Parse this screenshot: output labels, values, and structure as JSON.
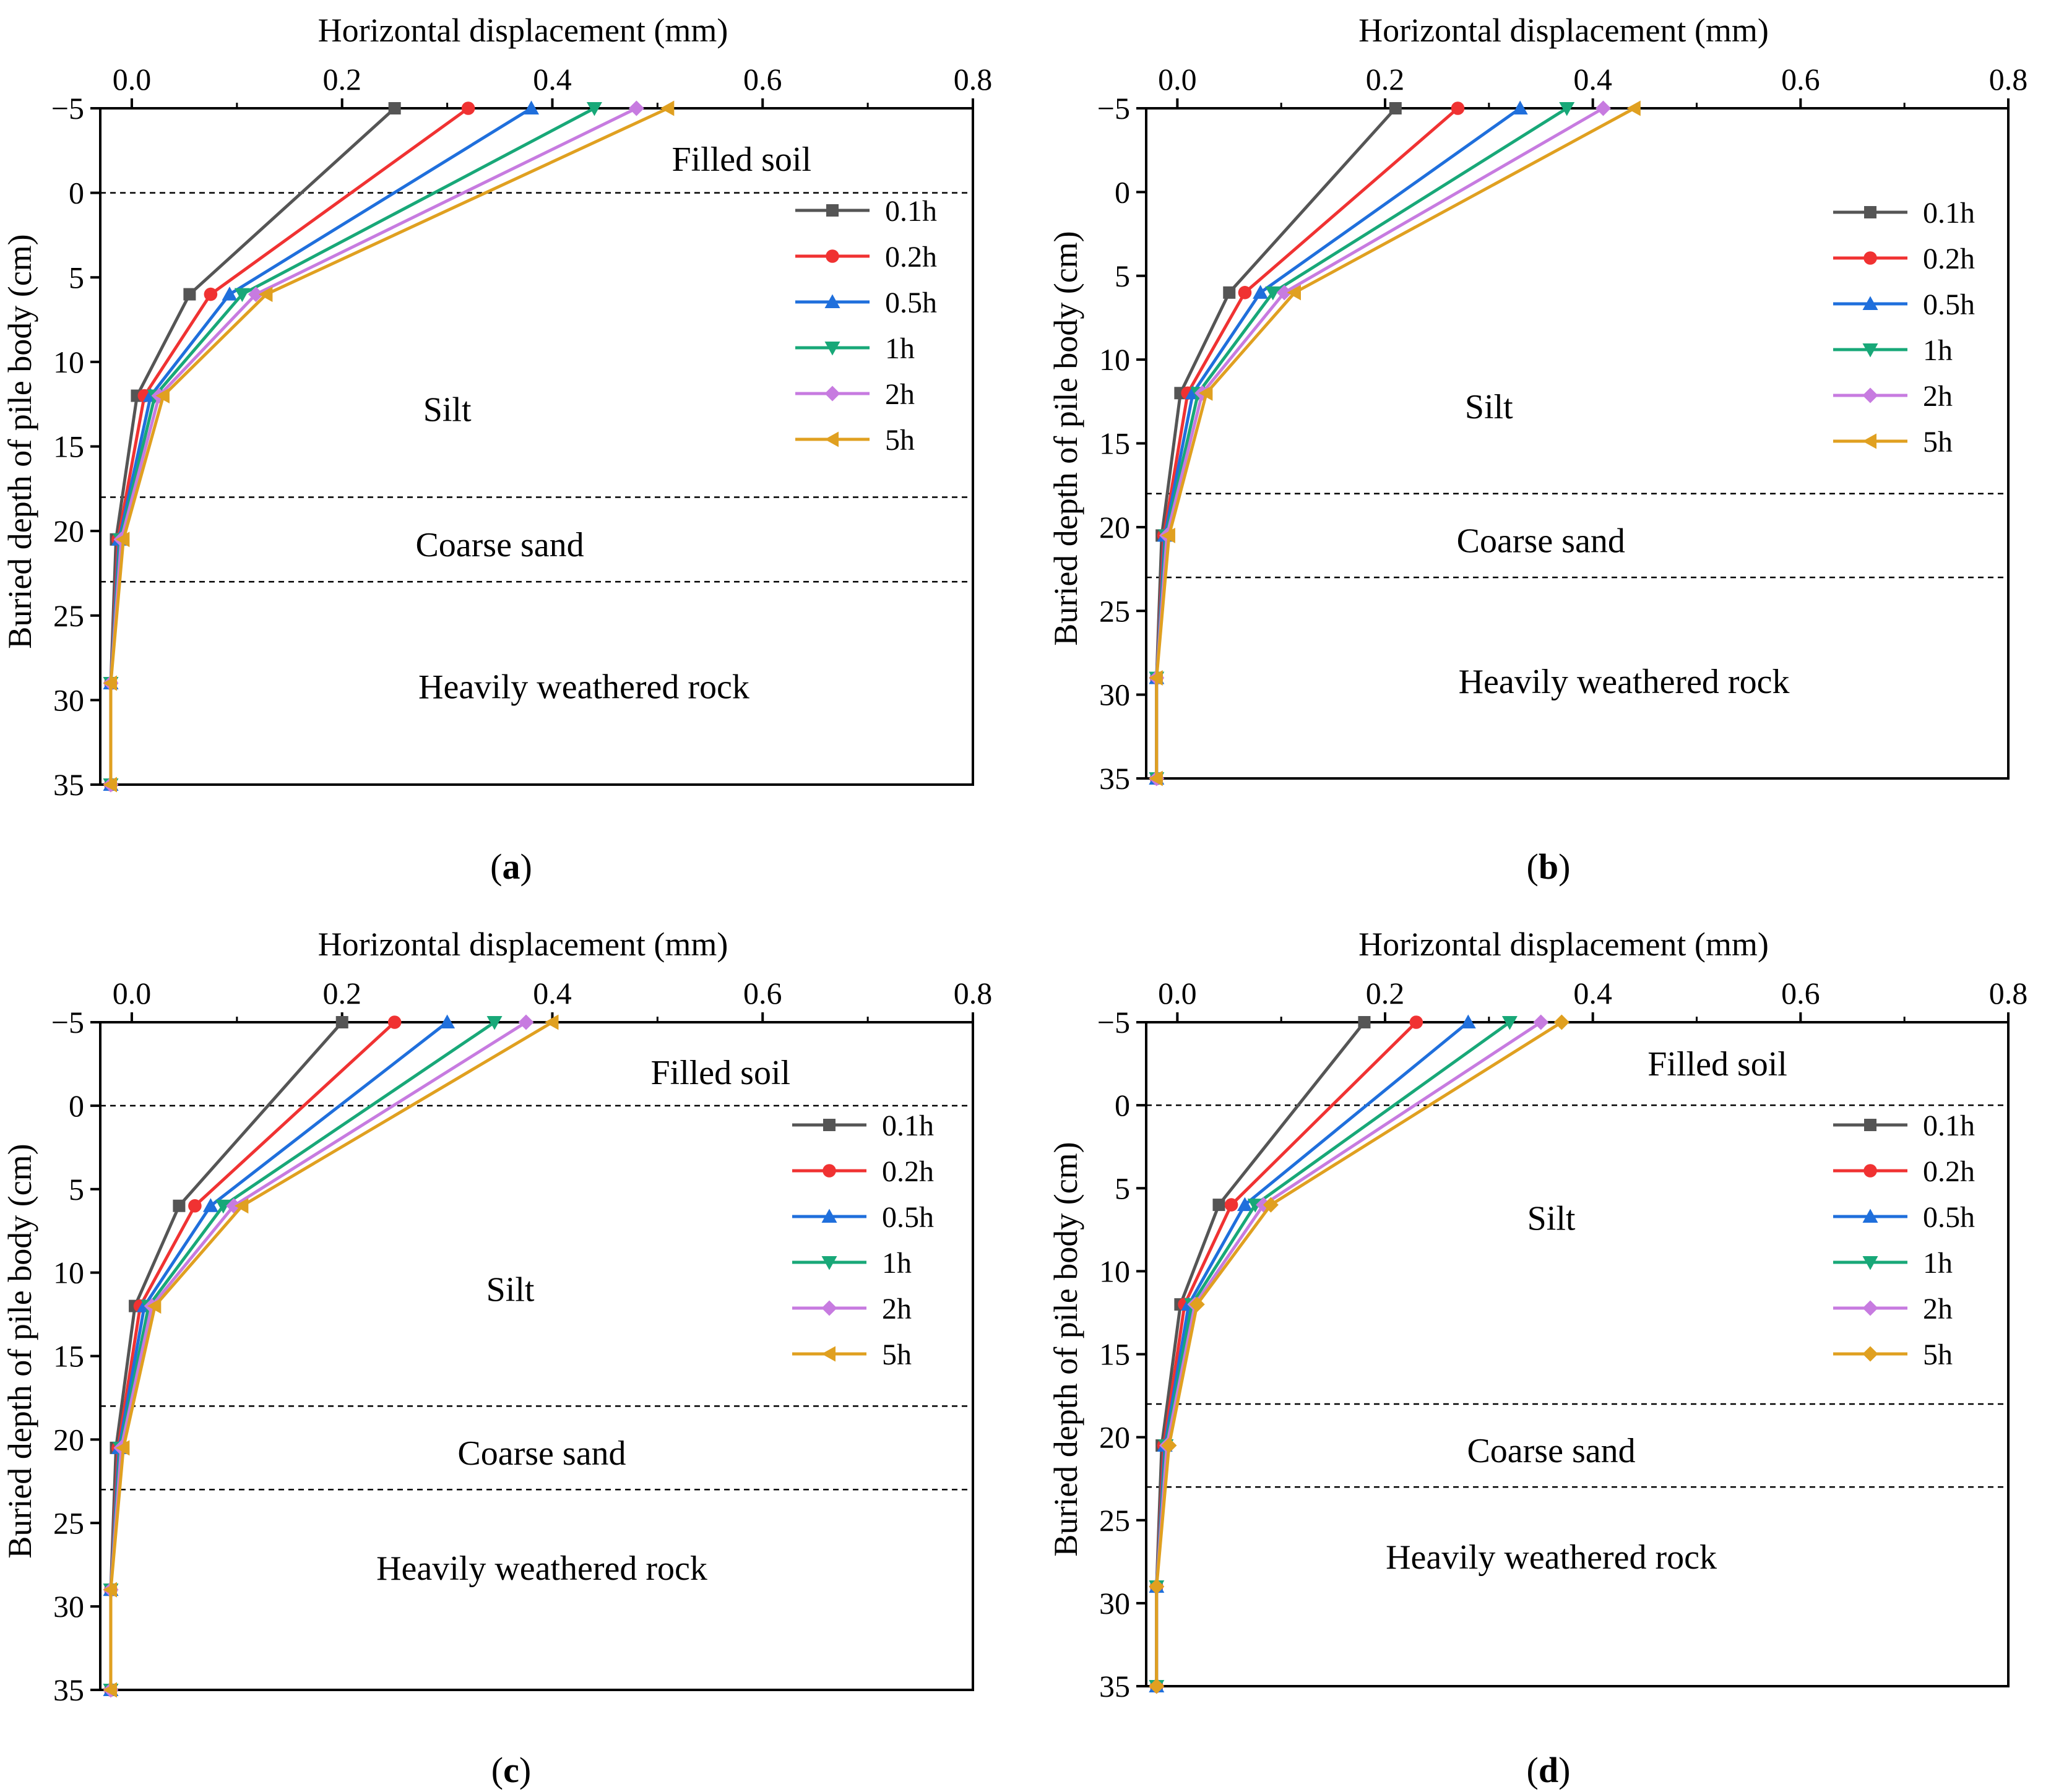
{
  "figure": {
    "panel_labels": [
      "(a)",
      "(b)",
      "(c)",
      "(d)"
    ]
  },
  "styles": {
    "series_colors": [
      "#555555",
      "#f03232",
      "#1f6fdc",
      "#18a878",
      "#c77be0",
      "#e0a020"
    ],
    "series_markers": [
      "square",
      "circle",
      "triangle-up",
      "triangle-down",
      "diamond",
      "triangle-left"
    ],
    "axis_color": "#000000",
    "boundary_color": "#000000"
  },
  "chart_data": [
    {
      "panel": "(a)",
      "type": "line",
      "xlabel": "Horizontal displacement (mm)",
      "ylabel": "Buried depth of pile body (cm)",
      "xlim": [
        -0.03,
        0.8
      ],
      "ylim": [
        -5,
        35
      ],
      "xticks": [
        0.0,
        0.2,
        0.4,
        0.6,
        0.8
      ],
      "xtick_labels": [
        "0.0",
        "0.2",
        "0.4",
        "0.6",
        "0.8"
      ],
      "yticks": [
        -5,
        0,
        5,
        10,
        15,
        20,
        25,
        30,
        35
      ],
      "ytick_labels": [
        "−5",
        "0",
        "5",
        "10",
        "15",
        "20",
        "25",
        "30",
        "35"
      ],
      "y": [
        -5,
        6,
        12,
        20.5,
        29,
        35
      ],
      "series": [
        {
          "name": "0.1h",
          "marker": "square",
          "values": [
            0.25,
            0.055,
            0.005,
            -0.015,
            -0.02,
            -0.02
          ]
        },
        {
          "name": "0.2h",
          "marker": "circle",
          "values": [
            0.32,
            0.075,
            0.012,
            -0.013,
            -0.02,
            -0.02
          ]
        },
        {
          "name": "0.5h",
          "marker": "triangle-up",
          "values": [
            0.38,
            0.093,
            0.018,
            -0.012,
            -0.02,
            -0.02
          ]
        },
        {
          "name": "1h",
          "marker": "triangle-down",
          "values": [
            0.44,
            0.105,
            0.022,
            -0.011,
            -0.02,
            -0.02
          ]
        },
        {
          "name": "2h",
          "marker": "diamond",
          "values": [
            0.48,
            0.118,
            0.026,
            -0.01,
            -0.02,
            -0.02
          ]
        },
        {
          "name": "5h",
          "marker": "triangle-left",
          "values": [
            0.51,
            0.128,
            0.03,
            -0.008,
            -0.02,
            -0.02
          ]
        }
      ],
      "boundaries": [
        0,
        18,
        23
      ],
      "regions": [
        {
          "label": "Filled soil",
          "x": 0.58,
          "y": -2
        },
        {
          "label": "Silt",
          "x": 0.3,
          "y": 12.8
        },
        {
          "label": "Coarse sand",
          "x": 0.35,
          "y": 20.8
        },
        {
          "label": "Heavily weathered rock",
          "x": 0.43,
          "y": 29.2
        }
      ],
      "legend": {
        "position": "upper-right"
      }
    },
    {
      "panel": "(b)",
      "type": "line",
      "xlabel": "Horizontal displacement (mm)",
      "ylabel": "Buried depth of pile body (cm)",
      "xlim": [
        -0.03,
        0.8
      ],
      "ylim": [
        -5,
        35
      ],
      "xticks": [
        0.0,
        0.2,
        0.4,
        0.6,
        0.8
      ],
      "xtick_labels": [
        "0.0",
        "0.2",
        "0.4",
        "0.6",
        "0.8"
      ],
      "yticks": [
        -5,
        0,
        5,
        10,
        15,
        20,
        25,
        30,
        35
      ],
      "ytick_labels": [
        "−5",
        "0",
        "5",
        "10",
        "15",
        "20",
        "25",
        "30",
        "35"
      ],
      "y": [
        -5,
        6,
        12,
        20.5,
        29,
        35
      ],
      "series": [
        {
          "name": "0.1h",
          "marker": "square",
          "values": [
            0.21,
            0.05,
            0.003,
            -0.015,
            -0.02,
            -0.02
          ]
        },
        {
          "name": "0.2h",
          "marker": "circle",
          "values": [
            0.27,
            0.065,
            0.01,
            -0.013,
            -0.02,
            -0.02
          ]
        },
        {
          "name": "0.5h",
          "marker": "triangle-up",
          "values": [
            0.33,
            0.08,
            0.015,
            -0.012,
            -0.02,
            -0.02
          ]
        },
        {
          "name": "1h",
          "marker": "triangle-down",
          "values": [
            0.375,
            0.092,
            0.02,
            -0.011,
            -0.02,
            -0.02
          ]
        },
        {
          "name": "2h",
          "marker": "diamond",
          "values": [
            0.41,
            0.103,
            0.024,
            -0.01,
            -0.02,
            -0.02
          ]
        },
        {
          "name": "5h",
          "marker": "triangle-left",
          "values": [
            0.44,
            0.113,
            0.028,
            -0.008,
            -0.02,
            -0.02
          ]
        }
      ],
      "boundaries": [
        18,
        23
      ],
      "regions": [
        {
          "label": "Silt",
          "x": 0.3,
          "y": 12.8
        },
        {
          "label": "Coarse sand",
          "x": 0.35,
          "y": 20.8
        },
        {
          "label": "Heavily weathered rock",
          "x": 0.43,
          "y": 29.2
        }
      ],
      "legend": {
        "position": "upper-right"
      }
    },
    {
      "panel": "(c)",
      "type": "line",
      "xlabel": "Horizontal displacement (mm)",
      "ylabel": "Buried depth of pile body (cm)",
      "xlim": [
        -0.03,
        0.8
      ],
      "ylim": [
        -5,
        35
      ],
      "xticks": [
        0.0,
        0.2,
        0.4,
        0.6,
        0.8
      ],
      "xtick_labels": [
        "0.0",
        "0.2",
        "0.4",
        "0.6",
        "0.8"
      ],
      "yticks": [
        -5,
        0,
        5,
        10,
        15,
        20,
        25,
        30,
        35
      ],
      "ytick_labels": [
        "−5",
        "0",
        "5",
        "10",
        "15",
        "20",
        "25",
        "30",
        "35"
      ],
      "y": [
        -5,
        6,
        12,
        20.5,
        29,
        35
      ],
      "series": [
        {
          "name": "0.1h",
          "marker": "square",
          "values": [
            0.2,
            0.045,
            0.003,
            -0.015,
            -0.02,
            -0.02
          ]
        },
        {
          "name": "0.2h",
          "marker": "circle",
          "values": [
            0.25,
            0.06,
            0.008,
            -0.013,
            -0.02,
            -0.02
          ]
        },
        {
          "name": "0.5h",
          "marker": "triangle-up",
          "values": [
            0.3,
            0.075,
            0.012,
            -0.012,
            -0.02,
            -0.02
          ]
        },
        {
          "name": "1h",
          "marker": "triangle-down",
          "values": [
            0.345,
            0.087,
            0.016,
            -0.011,
            -0.02,
            -0.02
          ]
        },
        {
          "name": "2h",
          "marker": "diamond",
          "values": [
            0.375,
            0.097,
            0.019,
            -0.01,
            -0.02,
            -0.02
          ]
        },
        {
          "name": "5h",
          "marker": "triangle-left",
          "values": [
            0.4,
            0.105,
            0.022,
            -0.008,
            -0.02,
            -0.02
          ]
        }
      ],
      "boundaries": [
        0,
        18,
        23
      ],
      "regions": [
        {
          "label": "Filled soil",
          "x": 0.56,
          "y": -2
        },
        {
          "label": "Silt",
          "x": 0.36,
          "y": 11
        },
        {
          "label": "Coarse sand",
          "x": 0.39,
          "y": 20.8
        },
        {
          "label": "Heavily weathered rock",
          "x": 0.39,
          "y": 27.7
        }
      ],
      "legend": {
        "position": "upper-right"
      }
    },
    {
      "panel": "(d)",
      "type": "line",
      "xlabel": "Horizontal displacement (mm)",
      "ylabel": "Buried depth of pile body (cm)",
      "xlim": [
        -0.03,
        0.8
      ],
      "ylim": [
        -5,
        35
      ],
      "xticks": [
        0.0,
        0.2,
        0.4,
        0.6,
        0.8
      ],
      "xtick_labels": [
        "0.0",
        "0.2",
        "0.4",
        "0.6",
        "0.8"
      ],
      "yticks": [
        -5,
        0,
        5,
        10,
        15,
        20,
        25,
        30,
        35
      ],
      "ytick_labels": [
        "−5",
        "0",
        "5",
        "10",
        "15",
        "20",
        "25",
        "30",
        "35"
      ],
      "y": [
        -5,
        6,
        12,
        20.5,
        29,
        35
      ],
      "series": [
        {
          "name": "0.1h",
          "marker": "square",
          "values": [
            0.18,
            0.04,
            0.003,
            -0.015,
            -0.02,
            -0.02
          ]
        },
        {
          "name": "0.2h",
          "marker": "circle",
          "values": [
            0.23,
            0.052,
            0.007,
            -0.013,
            -0.02,
            -0.02
          ]
        },
        {
          "name": "0.5h",
          "marker": "triangle-up",
          "values": [
            0.28,
            0.065,
            0.011,
            -0.012,
            -0.02,
            -0.02
          ]
        },
        {
          "name": "1h",
          "marker": "triangle-down",
          "values": [
            0.32,
            0.075,
            0.014,
            -0.011,
            -0.02,
            -0.02
          ]
        },
        {
          "name": "2h",
          "marker": "diamond",
          "values": [
            0.35,
            0.083,
            0.017,
            -0.01,
            -0.02,
            -0.02
          ]
        },
        {
          "name": "5h",
          "marker": "diamond",
          "values": [
            0.37,
            0.09,
            0.019,
            -0.008,
            -0.02,
            -0.02
          ]
        }
      ],
      "boundaries": [
        0,
        18,
        23
      ],
      "regions": [
        {
          "label": "Filled soil",
          "x": 0.52,
          "y": -2.5
        },
        {
          "label": "Silt",
          "x": 0.36,
          "y": 6.8
        },
        {
          "label": "Coarse sand",
          "x": 0.36,
          "y": 20.8
        },
        {
          "label": "Heavily weathered rock",
          "x": 0.36,
          "y": 27.2
        }
      ],
      "legend": {
        "position": "upper-right"
      }
    }
  ]
}
